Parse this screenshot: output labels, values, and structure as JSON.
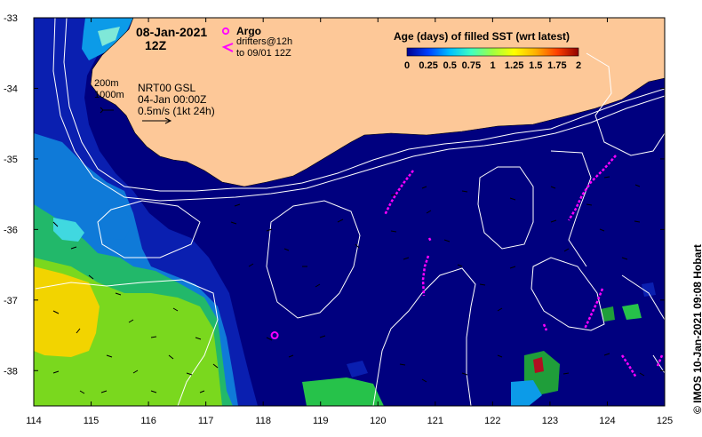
{
  "header": {
    "date": "08-Jan-2021",
    "time": "12Z"
  },
  "legend": {
    "argo_label": "Argo",
    "drifters_line1": "drifters@12h",
    "drifters_line2": "to 09/01 12Z",
    "argo_color": "#ff00ff",
    "colorbar_title": "Age (days) of filled SST (wrt latest)",
    "colorbar_ticks": [
      "0",
      "0.25",
      "0.5",
      "0.75",
      "1",
      "1.25",
      "1.5",
      "1.75",
      "2"
    ],
    "colorbar_colors": [
      "#000090",
      "#0040ff",
      "#00c0ff",
      "#40ffc0",
      "#a0ff40",
      "#ffff00",
      "#ffb000",
      "#ff4000",
      "#900000"
    ]
  },
  "info": {
    "contour1": "200m",
    "contour2": "1000m",
    "product": "NRT00 GSL",
    "date": "04-Jan 00:00Z",
    "scale": "0.5m/s (1kt 24h)"
  },
  "credit": "© IMOS 10-Jan-2021 09:08 Hobart",
  "axes": {
    "x_ticks": [
      "114",
      "115",
      "116",
      "117",
      "118",
      "119",
      "120",
      "121",
      "122",
      "123",
      "124",
      "125"
    ],
    "y_ticks": [
      "-33",
      "-34",
      "-35",
      "-36",
      "-37",
      "-38"
    ],
    "xlim": [
      114,
      125
    ],
    "ylim": [
      -38.5,
      -33
    ]
  },
  "colors": {
    "land": "#fdc898",
    "ocean": "#00007f",
    "contour": "#ffffff"
  },
  "chart_data": {
    "type": "map",
    "argo_floats": [
      {
        "lon": 118.2,
        "lat": -37.5
      }
    ]
  }
}
